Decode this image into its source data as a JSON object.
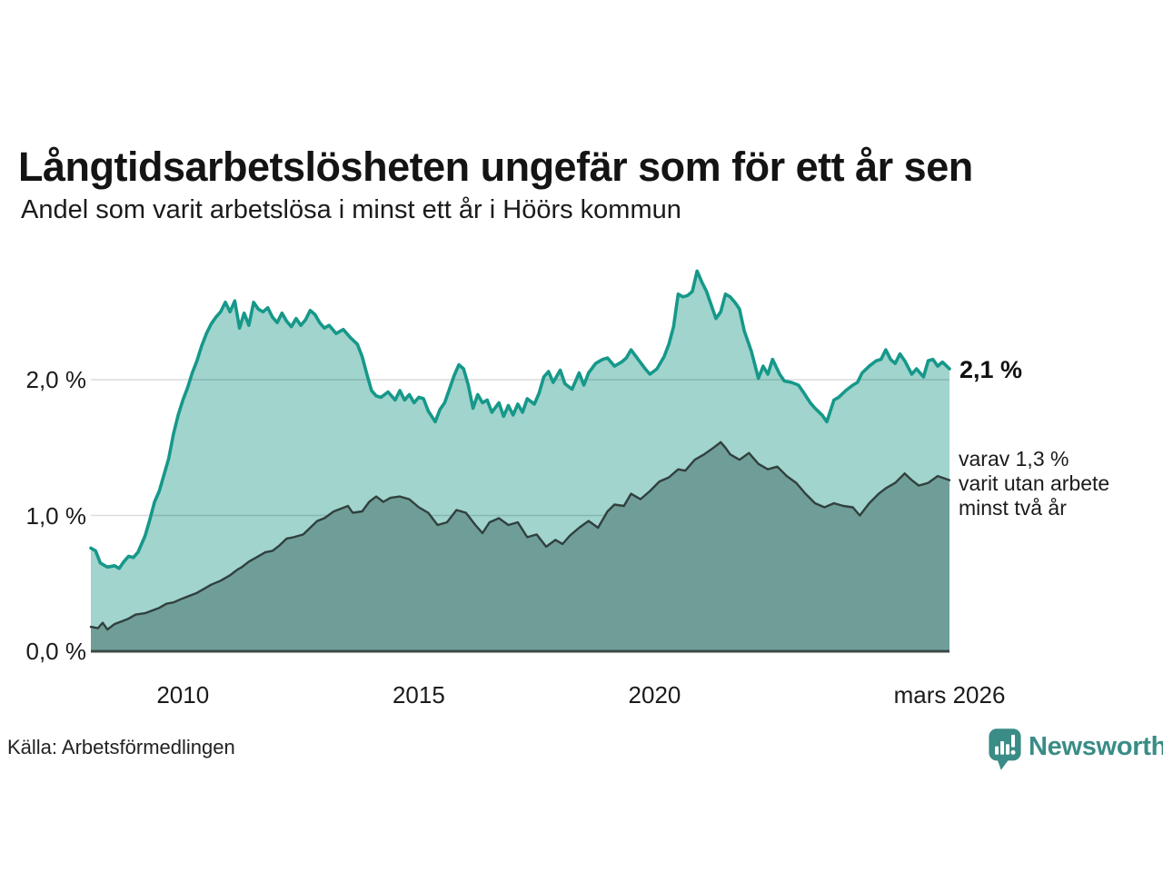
{
  "header": {
    "title": "Långtidsarbetslösheten ungefär som för ett år sen",
    "subtitle": "Andel som varit arbetslösa i minst ett år i Höörs kommun"
  },
  "annotations": {
    "latest_total": "2,1 %",
    "secondary_lines": [
      "varav 1,3 %",
      "varit utan arbete",
      "minst två år"
    ]
  },
  "source": {
    "label": "Källa: Arbetsförmedlingen"
  },
  "branding": {
    "name": "Newsworthy",
    "logo_icon": "bar-chart-speech-bubble-icon",
    "logo_color": "#3a8c86"
  },
  "colors": {
    "total_line": "#16988a",
    "total_fill": "#a0d4cd",
    "twoplus_line": "#31403d",
    "twoplus_fill": "#6f9e98",
    "gridline": "rgba(0,0,0,0.14)",
    "baseline": "#3c4a47",
    "text": "#1b1b1b"
  },
  "chart_data": {
    "type": "area",
    "title": "Långtidsarbetslösheten ungefär som för ett år sen",
    "subtitle": "Andel som varit arbetslösa i minst ett år i Höörs kommun",
    "xlabel": "",
    "ylabel": "",
    "unit": "%",
    "grid": "horizontal",
    "legend": "annotations-right",
    "x_axis": {
      "range": [
        2008.05,
        2026.25
      ],
      "ticks": [
        {
          "value": 2010,
          "label": "2010"
        },
        {
          "value": 2015,
          "label": "2015"
        },
        {
          "value": 2020,
          "label": "2020"
        },
        {
          "value": 2026.25,
          "label": "mars 2026"
        }
      ]
    },
    "y_axis": {
      "range": [
        0,
        2.86
      ],
      "grid_values": [
        1,
        2
      ],
      "ticks": [
        {
          "value": 0,
          "label": "0,0 %"
        },
        {
          "value": 1,
          "label": "1,0 %"
        },
        {
          "value": 2,
          "label": "2,0 %"
        }
      ]
    },
    "series": [
      {
        "name": "Andel arbetslösa minst ett år",
        "latest_label": "2,1 %",
        "latest_value": 2.1,
        "color": "#16988a",
        "fill": "#a0d4cd",
        "points": [
          [
            2008.05,
            0.76
          ],
          [
            2008.15,
            0.74
          ],
          [
            2008.25,
            0.65
          ],
          [
            2008.4,
            0.62
          ],
          [
            2008.55,
            0.63
          ],
          [
            2008.65,
            0.61
          ],
          [
            2008.75,
            0.66
          ],
          [
            2008.85,
            0.7
          ],
          [
            2008.95,
            0.69
          ],
          [
            2009.05,
            0.73
          ],
          [
            2009.2,
            0.85
          ],
          [
            2009.3,
            0.97
          ],
          [
            2009.4,
            1.1
          ],
          [
            2009.5,
            1.18
          ],
          [
            2009.6,
            1.3
          ],
          [
            2009.7,
            1.42
          ],
          [
            2009.8,
            1.6
          ],
          [
            2009.9,
            1.74
          ],
          [
            2010.0,
            1.85
          ],
          [
            2010.1,
            1.94
          ],
          [
            2010.2,
            2.05
          ],
          [
            2010.3,
            2.14
          ],
          [
            2010.4,
            2.25
          ],
          [
            2010.5,
            2.34
          ],
          [
            2010.6,
            2.41
          ],
          [
            2010.7,
            2.46
          ],
          [
            2010.8,
            2.5
          ],
          [
            2010.9,
            2.57
          ],
          [
            2011.0,
            2.5
          ],
          [
            2011.1,
            2.58
          ],
          [
            2011.2,
            2.38
          ],
          [
            2011.3,
            2.49
          ],
          [
            2011.4,
            2.4
          ],
          [
            2011.5,
            2.57
          ],
          [
            2011.6,
            2.52
          ],
          [
            2011.7,
            2.5
          ],
          [
            2011.8,
            2.53
          ],
          [
            2011.9,
            2.46
          ],
          [
            2012.0,
            2.42
          ],
          [
            2012.1,
            2.49
          ],
          [
            2012.2,
            2.43
          ],
          [
            2012.3,
            2.39
          ],
          [
            2012.4,
            2.45
          ],
          [
            2012.5,
            2.4
          ],
          [
            2012.6,
            2.44
          ],
          [
            2012.7,
            2.51
          ],
          [
            2012.8,
            2.48
          ],
          [
            2012.9,
            2.42
          ],
          [
            2013.0,
            2.38
          ],
          [
            2013.1,
            2.4
          ],
          [
            2013.25,
            2.34
          ],
          [
            2013.4,
            2.37
          ],
          [
            2013.55,
            2.31
          ],
          [
            2013.7,
            2.26
          ],
          [
            2013.8,
            2.17
          ],
          [
            2013.9,
            2.04
          ],
          [
            2014.0,
            1.92
          ],
          [
            2014.1,
            1.88
          ],
          [
            2014.2,
            1.87
          ],
          [
            2014.35,
            1.91
          ],
          [
            2014.5,
            1.85
          ],
          [
            2014.6,
            1.92
          ],
          [
            2014.7,
            1.85
          ],
          [
            2014.8,
            1.89
          ],
          [
            2014.9,
            1.83
          ],
          [
            2015.0,
            1.87
          ],
          [
            2015.1,
            1.86
          ],
          [
            2015.2,
            1.77
          ],
          [
            2015.35,
            1.69
          ],
          [
            2015.45,
            1.78
          ],
          [
            2015.55,
            1.83
          ],
          [
            2015.65,
            1.93
          ],
          [
            2015.75,
            2.03
          ],
          [
            2015.85,
            2.11
          ],
          [
            2015.95,
            2.08
          ],
          [
            2016.05,
            1.96
          ],
          [
            2016.15,
            1.79
          ],
          [
            2016.25,
            1.89
          ],
          [
            2016.35,
            1.83
          ],
          [
            2016.45,
            1.85
          ],
          [
            2016.55,
            1.76
          ],
          [
            2016.7,
            1.83
          ],
          [
            2016.8,
            1.73
          ],
          [
            2016.9,
            1.81
          ],
          [
            2017.0,
            1.74
          ],
          [
            2017.1,
            1.82
          ],
          [
            2017.2,
            1.76
          ],
          [
            2017.3,
            1.86
          ],
          [
            2017.45,
            1.82
          ],
          [
            2017.55,
            1.9
          ],
          [
            2017.65,
            2.02
          ],
          [
            2017.75,
            2.06
          ],
          [
            2017.85,
            1.98
          ],
          [
            2018.0,
            2.07
          ],
          [
            2018.1,
            1.97
          ],
          [
            2018.25,
            1.93
          ],
          [
            2018.4,
            2.05
          ],
          [
            2018.5,
            1.96
          ],
          [
            2018.6,
            2.05
          ],
          [
            2018.75,
            2.12
          ],
          [
            2018.9,
            2.15
          ],
          [
            2019.0,
            2.16
          ],
          [
            2019.15,
            2.1
          ],
          [
            2019.3,
            2.13
          ],
          [
            2019.4,
            2.16
          ],
          [
            2019.5,
            2.22
          ],
          [
            2019.65,
            2.15
          ],
          [
            2019.8,
            2.08
          ],
          [
            2019.9,
            2.04
          ],
          [
            2020.05,
            2.08
          ],
          [
            2020.2,
            2.17
          ],
          [
            2020.3,
            2.26
          ],
          [
            2020.4,
            2.39
          ],
          [
            2020.5,
            2.63
          ],
          [
            2020.6,
            2.61
          ],
          [
            2020.7,
            2.62
          ],
          [
            2020.8,
            2.65
          ],
          [
            2020.9,
            2.8
          ],
          [
            2021.0,
            2.72
          ],
          [
            2021.1,
            2.65
          ],
          [
            2021.2,
            2.55
          ],
          [
            2021.3,
            2.45
          ],
          [
            2021.4,
            2.5
          ],
          [
            2021.5,
            2.63
          ],
          [
            2021.6,
            2.61
          ],
          [
            2021.7,
            2.57
          ],
          [
            2021.8,
            2.52
          ],
          [
            2021.9,
            2.36
          ],
          [
            2022.05,
            2.21
          ],
          [
            2022.2,
            2.01
          ],
          [
            2022.3,
            2.1
          ],
          [
            2022.4,
            2.04
          ],
          [
            2022.5,
            2.15
          ],
          [
            2022.65,
            2.04
          ],
          [
            2022.75,
            1.99
          ],
          [
            2022.9,
            1.98
          ],
          [
            2023.05,
            1.96
          ],
          [
            2023.15,
            1.91
          ],
          [
            2023.3,
            1.83
          ],
          [
            2023.4,
            1.79
          ],
          [
            2023.55,
            1.74
          ],
          [
            2023.65,
            1.69
          ],
          [
            2023.8,
            1.85
          ],
          [
            2023.9,
            1.87
          ],
          [
            2024.05,
            1.92
          ],
          [
            2024.2,
            1.96
          ],
          [
            2024.3,
            1.98
          ],
          [
            2024.4,
            2.05
          ],
          [
            2024.55,
            2.1
          ],
          [
            2024.7,
            2.14
          ],
          [
            2024.8,
            2.15
          ],
          [
            2024.9,
            2.22
          ],
          [
            2025.0,
            2.15
          ],
          [
            2025.1,
            2.12
          ],
          [
            2025.2,
            2.19
          ],
          [
            2025.3,
            2.14
          ],
          [
            2025.45,
            2.04
          ],
          [
            2025.55,
            2.08
          ],
          [
            2025.7,
            2.02
          ],
          [
            2025.8,
            2.14
          ],
          [
            2025.9,
            2.15
          ],
          [
            2026.0,
            2.1
          ],
          [
            2026.1,
            2.13
          ],
          [
            2026.25,
            2.08
          ]
        ]
      },
      {
        "name": "varav varit utan arbete minst två år",
        "latest_label": "varav 1,3 % varit utan arbete minst två år",
        "latest_value": 1.3,
        "color": "#31403d",
        "fill": "#6f9e98",
        "points": [
          [
            2008.05,
            0.18
          ],
          [
            2008.2,
            0.17
          ],
          [
            2008.3,
            0.21
          ],
          [
            2008.4,
            0.16
          ],
          [
            2008.55,
            0.2
          ],
          [
            2008.7,
            0.22
          ],
          [
            2008.85,
            0.24
          ],
          [
            2009.0,
            0.27
          ],
          [
            2009.2,
            0.28
          ],
          [
            2009.35,
            0.3
          ],
          [
            2009.5,
            0.32
          ],
          [
            2009.65,
            0.35
          ],
          [
            2009.8,
            0.36
          ],
          [
            2010.0,
            0.39
          ],
          [
            2010.15,
            0.41
          ],
          [
            2010.3,
            0.43
          ],
          [
            2010.45,
            0.46
          ],
          [
            2010.6,
            0.49
          ],
          [
            2010.8,
            0.52
          ],
          [
            2011.0,
            0.56
          ],
          [
            2011.15,
            0.6
          ],
          [
            2011.25,
            0.62
          ],
          [
            2011.4,
            0.66
          ],
          [
            2011.6,
            0.7
          ],
          [
            2011.75,
            0.73
          ],
          [
            2011.9,
            0.74
          ],
          [
            2012.05,
            0.78
          ],
          [
            2012.2,
            0.83
          ],
          [
            2012.35,
            0.84
          ],
          [
            2012.55,
            0.86
          ],
          [
            2012.7,
            0.91
          ],
          [
            2012.85,
            0.96
          ],
          [
            2013.0,
            0.98
          ],
          [
            2013.2,
            1.03
          ],
          [
            2013.35,
            1.05
          ],
          [
            2013.5,
            1.07
          ],
          [
            2013.6,
            1.02
          ],
          [
            2013.8,
            1.03
          ],
          [
            2013.95,
            1.1
          ],
          [
            2014.1,
            1.14
          ],
          [
            2014.25,
            1.1
          ],
          [
            2014.4,
            1.13
          ],
          [
            2014.6,
            1.14
          ],
          [
            2014.8,
            1.12
          ],
          [
            2015.0,
            1.06
          ],
          [
            2015.2,
            1.02
          ],
          [
            2015.4,
            0.93
          ],
          [
            2015.6,
            0.95
          ],
          [
            2015.8,
            1.04
          ],
          [
            2016.0,
            1.02
          ],
          [
            2016.2,
            0.93
          ],
          [
            2016.35,
            0.87
          ],
          [
            2016.5,
            0.95
          ],
          [
            2016.7,
            0.98
          ],
          [
            2016.9,
            0.93
          ],
          [
            2017.1,
            0.95
          ],
          [
            2017.3,
            0.84
          ],
          [
            2017.5,
            0.86
          ],
          [
            2017.7,
            0.77
          ],
          [
            2017.9,
            0.82
          ],
          [
            2018.05,
            0.79
          ],
          [
            2018.2,
            0.85
          ],
          [
            2018.4,
            0.91
          ],
          [
            2018.6,
            0.96
          ],
          [
            2018.8,
            0.91
          ],
          [
            2019.0,
            1.03
          ],
          [
            2019.15,
            1.08
          ],
          [
            2019.35,
            1.07
          ],
          [
            2019.5,
            1.16
          ],
          [
            2019.7,
            1.12
          ],
          [
            2019.9,
            1.18
          ],
          [
            2020.1,
            1.25
          ],
          [
            2020.3,
            1.28
          ],
          [
            2020.5,
            1.34
          ],
          [
            2020.65,
            1.33
          ],
          [
            2020.85,
            1.41
          ],
          [
            2021.05,
            1.45
          ],
          [
            2021.25,
            1.5
          ],
          [
            2021.4,
            1.54
          ],
          [
            2021.5,
            1.5
          ],
          [
            2021.6,
            1.45
          ],
          [
            2021.8,
            1.41
          ],
          [
            2022.0,
            1.46
          ],
          [
            2022.2,
            1.38
          ],
          [
            2022.4,
            1.34
          ],
          [
            2022.6,
            1.36
          ],
          [
            2022.8,
            1.29
          ],
          [
            2023.0,
            1.24
          ],
          [
            2023.2,
            1.16
          ],
          [
            2023.4,
            1.09
          ],
          [
            2023.6,
            1.06
          ],
          [
            2023.8,
            1.09
          ],
          [
            2024.0,
            1.07
          ],
          [
            2024.2,
            1.06
          ],
          [
            2024.35,
            1.0
          ],
          [
            2024.55,
            1.09
          ],
          [
            2024.75,
            1.16
          ],
          [
            2024.9,
            1.2
          ],
          [
            2025.1,
            1.24
          ],
          [
            2025.3,
            1.31
          ],
          [
            2025.45,
            1.26
          ],
          [
            2025.6,
            1.22
          ],
          [
            2025.8,
            1.24
          ],
          [
            2026.0,
            1.29
          ],
          [
            2026.25,
            1.26
          ]
        ]
      }
    ]
  }
}
